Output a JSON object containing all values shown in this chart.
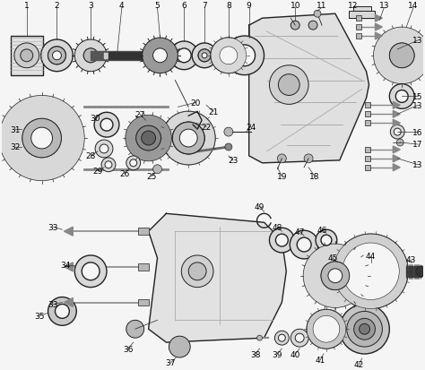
{
  "bg_color": "#f5f5f5",
  "line_color": "#222222",
  "label_color": "#000000",
  "fig_width": 4.74,
  "fig_height": 4.14,
  "dpi": 100
}
